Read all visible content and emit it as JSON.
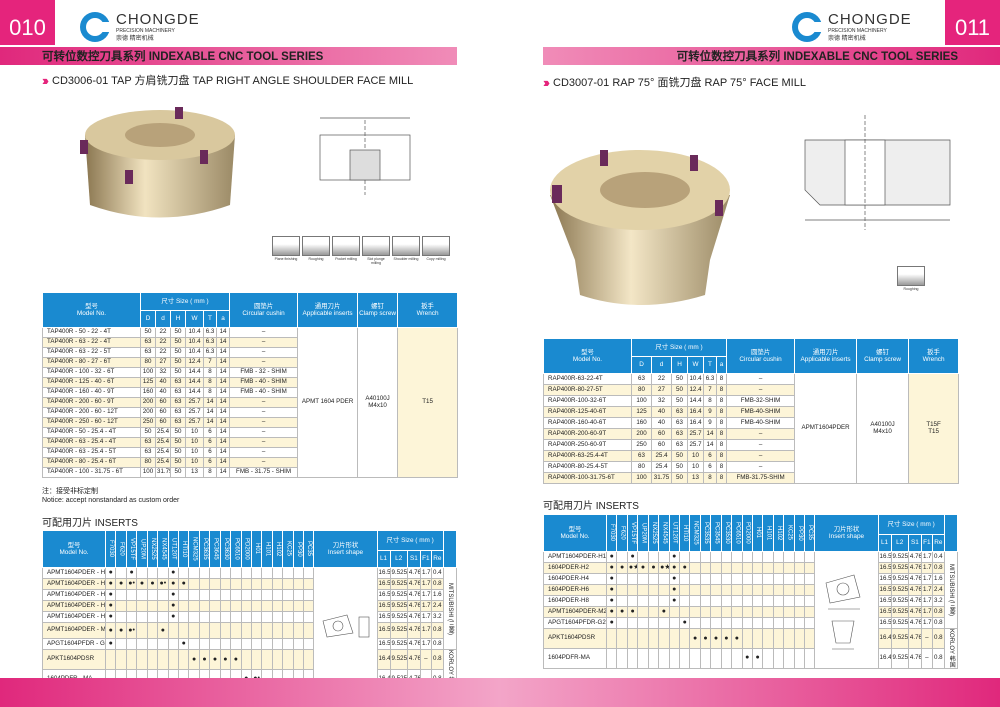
{
  "brand": {
    "name": "CHONGDE",
    "subtitle": "PRECISION MACHINERY",
    "cn": "崇德 精密机械"
  },
  "left": {
    "page_number": "010",
    "series": "可转位数控刀具系列 INDEXABLE CNC TOOL SERIES",
    "product_title": "CD3006-01  TAP 方肩铣刀盘  TAP RIGHT ANGLE SHOULDER FACE MILL",
    "machining_types": [
      "Plane finishing",
      "Roughing",
      "Pocket milling",
      "Slot plunge milling",
      "Shoulder milling",
      "Copy milling"
    ],
    "table": {
      "headers": {
        "model": "型号\nModel No.",
        "size": "尺寸 Size ( mm )",
        "cols": [
          "D",
          "d",
          "H",
          "W",
          "T",
          "a"
        ],
        "cushion": "圆垫片\nCircular cushin",
        "inserts": "通用刀片\nApplicable inserts",
        "screw": "螺钉\nClamp screw",
        "wrench": "扳手\nWrench"
      },
      "rows": [
        [
          "TAP400R - 50 - 22 - 4T",
          "50",
          "22",
          "50",
          "10.4",
          "6.3",
          "14",
          "–"
        ],
        [
          "TAP400R - 63 - 22 - 4T",
          "63",
          "22",
          "50",
          "10.4",
          "6.3",
          "14",
          "–"
        ],
        [
          "TAP400R - 63 - 22 - 5T",
          "63",
          "22",
          "50",
          "10.4",
          "6.3",
          "14",
          "–"
        ],
        [
          "TAP400R - 80 - 27 - 6T",
          "80",
          "27",
          "50",
          "12.4",
          "7",
          "14",
          "–"
        ],
        [
          "TAP400R - 100 - 32 - 6T",
          "100",
          "32",
          "50",
          "14.4",
          "8",
          "14",
          "FMB - 32 - SHIM"
        ],
        [
          "TAP400R - 125 - 40 - 6T",
          "125",
          "40",
          "63",
          "14.4",
          "8",
          "14",
          "FMB - 40 - SHIM"
        ],
        [
          "TAP400R - 160 - 40 - 9T",
          "160",
          "40",
          "63",
          "14.4",
          "8",
          "14",
          "FMB - 40 - SHIM"
        ],
        [
          "TAP400R - 200 - 60 - 9T",
          "200",
          "60",
          "63",
          "25.7",
          "14",
          "14",
          "–"
        ],
        [
          "TAP400R - 200 - 60 - 12T",
          "200",
          "60",
          "63",
          "25.7",
          "14",
          "14",
          "–"
        ],
        [
          "TAP400R - 250 - 60 - 12T",
          "250",
          "60",
          "63",
          "25.7",
          "14",
          "14",
          "–"
        ],
        [
          "TAP400R - 50 - 25.4 - 4T",
          "50",
          "25.4",
          "50",
          "10",
          "6",
          "14",
          "–"
        ],
        [
          "TAP400R - 63 - 25.4 - 4T",
          "63",
          "25.4",
          "50",
          "10",
          "6",
          "14",
          "–"
        ],
        [
          "TAP400R - 63 - 25.4 - 5T",
          "63",
          "25.4",
          "50",
          "10",
          "6",
          "14",
          "–"
        ],
        [
          "TAP400R - 80 - 25.4 - 6T",
          "80",
          "25.4",
          "50",
          "10",
          "6",
          "14",
          "–"
        ],
        [
          "TAP400R - 100 - 31.75 - 6T",
          "100",
          "31.75",
          "50",
          "13",
          "8",
          "14",
          "FMB - 31.75 - SHIM"
        ]
      ],
      "inserts": "APMT 1604 PDER",
      "screw": "A40100J\nM4x10",
      "wrench": "T15"
    },
    "note": "注：接受非标定制\nNotice: accept nonstandard as custom order",
    "inserts_title": "可配用刀片 INSERTS",
    "inserts": {
      "grades": [
        "F7030",
        "F620",
        "VP15TF",
        "UP20M",
        "NX2525",
        "NX4545",
        "UT120T",
        "HTI10",
        "NCM325",
        "PC3635",
        "PC3645",
        "PC3630",
        "PC6510",
        "PD2000",
        "H01",
        "H101",
        "H102",
        "KC25",
        "PP30",
        "PC35"
      ],
      "rows": [
        {
          "model": "APMT1604PDER - H1",
          "marks": {
            "0": "●",
            "2": "●",
            "6": "●"
          },
          "size": [
            "16.5",
            "9.525",
            "4.76",
            "1.7",
            "0.4"
          ]
        },
        {
          "model": "APMT1604PDER - H2",
          "marks": {
            "0": "●",
            "1": "●",
            "2": "●•",
            "3": "●",
            "4": "●",
            "5": "●•",
            "6": "●",
            "7": "●"
          },
          "size": [
            "16.5",
            "9.525",
            "4.76",
            "1.7",
            "0.8"
          ]
        },
        {
          "model": "APMT1604PDER - H4",
          "marks": {
            "0": "●",
            "6": "●"
          },
          "size": [
            "16.5",
            "9.525",
            "4.76",
            "1.7",
            "1.6"
          ]
        },
        {
          "model": "APMT1604PDER - H6",
          "marks": {
            "0": "●",
            "6": "●"
          },
          "size": [
            "16.5",
            "9.525",
            "4.76",
            "1.7",
            "2.4"
          ]
        },
        {
          "model": "APMT1604PDER - H8",
          "marks": {
            "0": "●",
            "6": "●"
          },
          "size": [
            "16.5",
            "9.525",
            "4.76",
            "1.7",
            "3.2"
          ]
        },
        {
          "model": "APMT1604PDER - M2",
          "marks": {
            "0": "●",
            "1": "●",
            "2": "●•",
            "5": "●"
          },
          "size": [
            "16.5",
            "9.525",
            "4.76",
            "1.7",
            "0.8"
          ]
        },
        {
          "model": "APGT1604PFDR - G2",
          "marks": {
            "0": "●",
            "7": "●"
          },
          "size": [
            "16.5",
            "9.525",
            "4.76",
            "1.7",
            "0.8"
          ]
        },
        {
          "model": "APKT1604PDSR",
          "marks": {
            "8": "●",
            "9": "●",
            "10": "●",
            "11": "●",
            "12": "●"
          },
          "size": [
            "16.4",
            "9.525",
            "4.76",
            "–",
            "0.8"
          ]
        },
        {
          "model": "1604PDFR - MA",
          "marks": {
            "13": "●",
            "14": "●•"
          },
          "size": [
            "16.4",
            "9.525",
            "4.76",
            "–",
            "0.8"
          ]
        }
      ],
      "brands": [
        {
          "name": "MITSUBISHI (三菱)",
          "rows": 7
        },
        {
          "name": "KORLOY 韩国",
          "rows": 2
        }
      ]
    }
  },
  "right": {
    "page_number": "011",
    "series": "可转位数控刀具系列 INDEXABLE CNC TOOL SERIES",
    "product_title": "CD3007-01  RAP  75°  面铣刀盘  RAP  75°  FACE MILL",
    "machining_types": [
      "Roughing"
    ],
    "table": {
      "headers": {
        "model": "型号\nModel No.",
        "size": "尺寸 Size ( mm )",
        "cols": [
          "D",
          "d",
          "H",
          "W",
          "T",
          "a"
        ],
        "cushion": "圆垫片\nCircular cushin",
        "inserts": "通用刀片\nApplicable inserts",
        "screw": "螺钉\nClamp screw",
        "wrench": "扳手\nWrench"
      },
      "rows": [
        [
          "RAP400R-63-22-4T",
          "63",
          "22",
          "50",
          "10.4",
          "6.3",
          "8",
          "–"
        ],
        [
          "RAP400R-80-27-5T",
          "80",
          "27",
          "50",
          "12.4",
          "7",
          "8",
          "–"
        ],
        [
          "RAP400R-100-32-6T",
          "100",
          "32",
          "50",
          "14.4",
          "8",
          "8",
          "FMB-32-SHIM"
        ],
        [
          "RAP400R-125-40-6T",
          "125",
          "40",
          "63",
          "16.4",
          "9",
          "8",
          "FMB-40-SHIM"
        ],
        [
          "RAP400R-160-40-6T",
          "160",
          "40",
          "63",
          "16.4",
          "9",
          "8",
          "FMB-40-SHIM"
        ],
        [
          "RAP400R-200-60-9T",
          "200",
          "60",
          "63",
          "25.7",
          "14",
          "8",
          "–"
        ],
        [
          "RAP400R-250-60-9T",
          "250",
          "60",
          "63",
          "25.7",
          "14",
          "8",
          "–"
        ],
        [
          "RAP400R-63-25.4-4T",
          "63",
          "25.4",
          "50",
          "10",
          "6",
          "8",
          "–"
        ],
        [
          "RAP400R-80-25.4-5T",
          "80",
          "25.4",
          "50",
          "10",
          "6",
          "8",
          "–"
        ],
        [
          "RAP400R-100-31.75-6T",
          "100",
          "31.75",
          "50",
          "13",
          "8",
          "8",
          "FMB-31.75-SHIM"
        ]
      ],
      "inserts": "APMT1604PDER",
      "screw": "A40100J\nM4x10",
      "wrench": "T15F\nT15"
    },
    "inserts_title": "可配用刀片 INSERTS",
    "inserts": {
      "grades": [
        "F7030",
        "F620",
        "VP15TF",
        "UP20M",
        "NX2525",
        "NX4545",
        "UT120T",
        "HTI10",
        "NCM325",
        "PC3535",
        "PC3545",
        "PC3530",
        "PC6510",
        "PD2000",
        "H01",
        "H101",
        "H102",
        "KC25",
        "PP30",
        "PC35"
      ],
      "rows": [
        {
          "model": "APMT1604PDER-H1",
          "marks": {
            "0": "●",
            "2": "●",
            "6": "●"
          },
          "size": [
            "16.5",
            "9.525",
            "4.76",
            "1.7",
            "0.4"
          ]
        },
        {
          "model": "1604PDER-H2",
          "marks": {
            "0": "●",
            "1": "●",
            "2": "●★",
            "3": "●",
            "4": "●",
            "5": "●★",
            "6": "●",
            "7": "●"
          },
          "size": [
            "16.5",
            "9.525",
            "4.76",
            "1.7",
            "0.8"
          ]
        },
        {
          "model": "1604PDER-H4",
          "marks": {
            "0": "●",
            "6": "●"
          },
          "size": [
            "16.5",
            "9.525",
            "4.76",
            "1.7",
            "1.6"
          ]
        },
        {
          "model": "1604PDER-H6",
          "marks": {
            "0": "●",
            "6": "●"
          },
          "size": [
            "16.5",
            "9.525",
            "4.76",
            "1.7",
            "2.4"
          ]
        },
        {
          "model": "1604PDER-H8",
          "marks": {
            "0": "●",
            "6": "●"
          },
          "size": [
            "16.5",
            "9.525",
            "4.76",
            "1.7",
            "3.2"
          ]
        },
        {
          "model": "APMT1604PDER-M2",
          "marks": {
            "0": "●",
            "1": "●",
            "2": "●",
            "5": "●"
          },
          "size": [
            "16.5",
            "9.525",
            "4.76",
            "1.7",
            "0.8"
          ]
        },
        {
          "model": "APGT1604PFDR-G2",
          "marks": {
            "0": "●",
            "7": "●"
          },
          "size": [
            "16.5",
            "9.525",
            "4.76",
            "1.7",
            "0.8"
          ]
        },
        {
          "model": "APKT1604PDSR",
          "marks": {
            "8": "●",
            "9": "●",
            "10": "●",
            "11": "●",
            "12": "●"
          },
          "size": [
            "16.4",
            "9.525",
            "4.76",
            "–",
            "0.8"
          ]
        },
        {
          "model": "1604PDFR-MA",
          "marks": {
            "13": "●",
            "14": "●"
          },
          "size": [
            "16.4",
            "9.525",
            "4.76",
            "–",
            "0.8"
          ]
        }
      ],
      "brands": [
        {
          "name": "MITSUBISHI (三菱)",
          "rows": 7
        },
        {
          "name": "KORLOY 韩国",
          "rows": 2
        }
      ]
    }
  },
  "inserts_headers": {
    "model": "型号\nModel No.",
    "shape": "刀片形状\nInsert shape",
    "size": "尺寸 Size ( mm )",
    "cols": [
      "L1",
      "L2",
      "S1",
      "F1",
      "Re"
    ]
  },
  "colors": {
    "accent": "#e5247c",
    "header_blue": "#1a8ad0",
    "row_alt": "#fdf5d8"
  }
}
